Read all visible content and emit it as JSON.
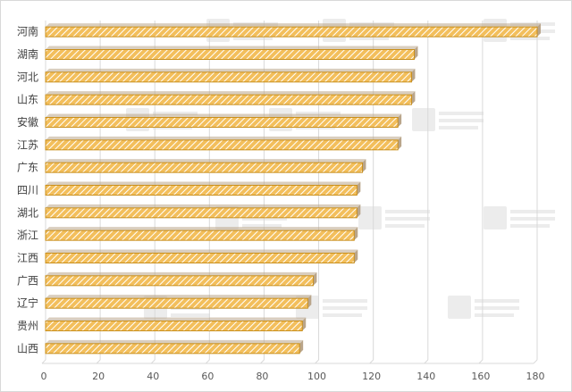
{
  "chart_data": {
    "type": "bar",
    "orientation": "horizontal",
    "categories": [
      "河南",
      "湖南",
      "河北",
      "山东",
      "安徽",
      "江苏",
      "广东",
      "四川",
      "湖北",
      "浙江",
      "江西",
      "广西",
      "辽宁",
      "贵州",
      "山西"
    ],
    "values": [
      180,
      135,
      134,
      134,
      129,
      129,
      116,
      114,
      114,
      113,
      113,
      98,
      96,
      94,
      93
    ],
    "xlim": [
      0,
      180
    ],
    "xticks": [
      0,
      20,
      40,
      60,
      80,
      100,
      120,
      140,
      160,
      180
    ],
    "grid": true,
    "legend": "none",
    "title": "",
    "xlabel": "",
    "ylabel": ""
  },
  "colors": {
    "bar_fill": "#f3bf5c",
    "bar_hatch": "#ffffff",
    "bar_edge": "#c98f1c",
    "bar_side": "#b9a58a",
    "grid": "#d9d9d9",
    "text": "#404040"
  }
}
